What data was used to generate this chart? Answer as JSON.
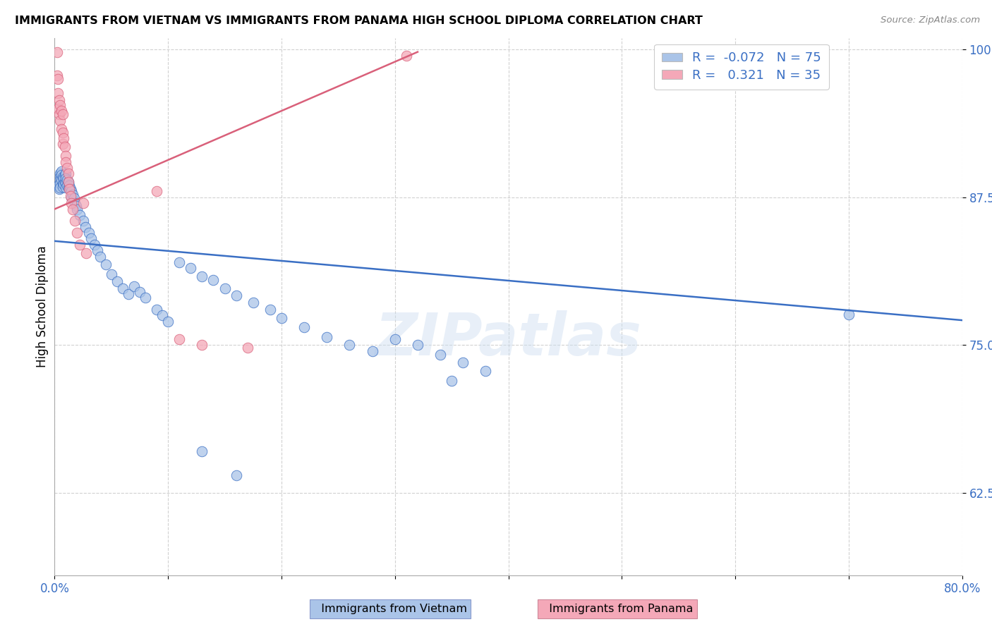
{
  "title": "IMMIGRANTS FROM VIETNAM VS IMMIGRANTS FROM PANAMA HIGH SCHOOL DIPLOMA CORRELATION CHART",
  "source": "Source: ZipAtlas.com",
  "ylabel": "High School Diploma",
  "legend_label_blue": "Immigrants from Vietnam",
  "legend_label_pink": "Immigrants from Panama",
  "R_blue": -0.072,
  "N_blue": 75,
  "R_pink": 0.321,
  "N_pink": 35,
  "xlim": [
    0.0,
    0.8
  ],
  "ylim": [
    0.555,
    1.01
  ],
  "ytick_positions": [
    0.625,
    0.75,
    0.875,
    1.0
  ],
  "ytick_labels": [
    "62.5%",
    "75.0%",
    "87.5%",
    "100.0%"
  ],
  "color_blue": "#aac4e8",
  "color_pink": "#f4a8b8",
  "line_color_blue": "#3a6fc4",
  "line_color_pink": "#d9607a",
  "watermark": "ZIPatlas",
  "blue_line_x0": 0.0,
  "blue_line_y0": 0.838,
  "blue_line_x1": 0.8,
  "blue_line_y1": 0.771,
  "pink_line_x0": 0.0,
  "pink_line_y0": 0.865,
  "pink_line_x1": 0.32,
  "pink_line_y1": 0.998,
  "blue_x": [
    0.003,
    0.004,
    0.005,
    0.005,
    0.005,
    0.005,
    0.005,
    0.006,
    0.006,
    0.006,
    0.007,
    0.007,
    0.007,
    0.008,
    0.008,
    0.009,
    0.009,
    0.01,
    0.01,
    0.01,
    0.01,
    0.011,
    0.011,
    0.012,
    0.012,
    0.013,
    0.014,
    0.015,
    0.015,
    0.016,
    0.017,
    0.018,
    0.019,
    0.02,
    0.022,
    0.025,
    0.027,
    0.03,
    0.032,
    0.035,
    0.038,
    0.04,
    0.045,
    0.05,
    0.055,
    0.06,
    0.065,
    0.07,
    0.075,
    0.08,
    0.09,
    0.095,
    0.1,
    0.11,
    0.12,
    0.13,
    0.14,
    0.15,
    0.16,
    0.175,
    0.19,
    0.2,
    0.22,
    0.24,
    0.26,
    0.28,
    0.3,
    0.32,
    0.34,
    0.36,
    0.38,
    0.13,
    0.16,
    0.7,
    0.35
  ],
  "blue_y": [
    0.885,
    0.882,
    0.895,
    0.892,
    0.89,
    0.887,
    0.883,
    0.897,
    0.894,
    0.89,
    0.892,
    0.887,
    0.884,
    0.891,
    0.886,
    0.894,
    0.888,
    0.895,
    0.891,
    0.887,
    0.883,
    0.89,
    0.885,
    0.888,
    0.883,
    0.885,
    0.882,
    0.88,
    0.875,
    0.877,
    0.874,
    0.87,
    0.868,
    0.865,
    0.86,
    0.855,
    0.85,
    0.845,
    0.84,
    0.835,
    0.83,
    0.825,
    0.818,
    0.81,
    0.804,
    0.798,
    0.793,
    0.8,
    0.795,
    0.79,
    0.78,
    0.775,
    0.77,
    0.82,
    0.815,
    0.808,
    0.805,
    0.798,
    0.792,
    0.786,
    0.78,
    0.773,
    0.765,
    0.757,
    0.75,
    0.745,
    0.755,
    0.75,
    0.742,
    0.735,
    0.728,
    0.66,
    0.64,
    0.776,
    0.72
  ],
  "pink_x": [
    0.002,
    0.002,
    0.003,
    0.003,
    0.003,
    0.004,
    0.004,
    0.005,
    0.005,
    0.006,
    0.006,
    0.007,
    0.007,
    0.007,
    0.008,
    0.009,
    0.01,
    0.01,
    0.011,
    0.012,
    0.012,
    0.013,
    0.014,
    0.015,
    0.016,
    0.018,
    0.02,
    0.022,
    0.025,
    0.028,
    0.09,
    0.11,
    0.13,
    0.17,
    0.31
  ],
  "pink_y": [
    0.998,
    0.978,
    0.975,
    0.963,
    0.95,
    0.957,
    0.945,
    0.953,
    0.94,
    0.948,
    0.933,
    0.945,
    0.93,
    0.92,
    0.925,
    0.918,
    0.91,
    0.905,
    0.9,
    0.895,
    0.888,
    0.882,
    0.876,
    0.87,
    0.865,
    0.855,
    0.845,
    0.835,
    0.87,
    0.828,
    0.88,
    0.755,
    0.75,
    0.748,
    0.995
  ]
}
